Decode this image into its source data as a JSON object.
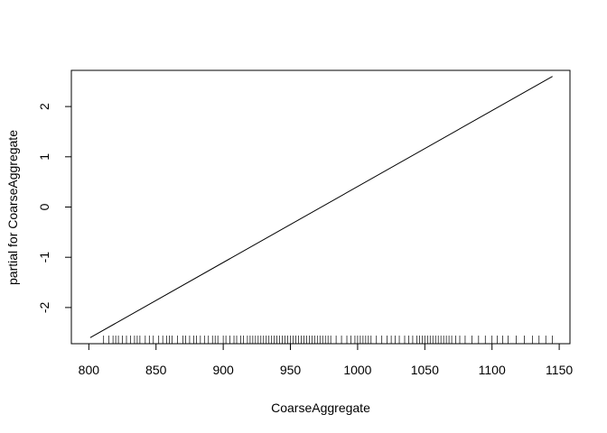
{
  "chart_data": {
    "type": "line",
    "title": "",
    "xlabel": "CoarseAggregate",
    "ylabel": "partial for CoarseAggregate",
    "xlim": [
      787,
      1158
    ],
    "ylim": [
      -2.72,
      2.72
    ],
    "xticks": [
      800,
      850,
      900,
      950,
      1000,
      1050,
      1100,
      1150
    ],
    "yticks": [
      -2,
      -1,
      0,
      1,
      2
    ],
    "grid": false,
    "legend": "none",
    "series": [
      {
        "type": "line",
        "x": [
          801,
          1145
        ],
        "y": [
          -2.6,
          2.6
        ]
      }
    ],
    "rug": [
      811,
      815,
      818,
      820,
      822,
      825,
      828,
      831,
      834,
      836,
      838,
      842,
      845,
      848,
      852,
      855,
      858,
      860,
      862,
      866,
      870,
      872,
      875,
      878,
      880,
      883,
      886,
      889,
      892,
      894,
      896,
      900,
      902,
      905,
      908,
      910,
      913,
      915,
      918,
      920,
      922,
      924,
      926,
      928,
      930,
      932,
      934,
      936,
      938,
      940,
      942,
      944,
      946,
      948,
      950,
      952,
      954,
      956,
      958,
      960,
      962,
      964,
      966,
      968,
      970,
      972,
      974,
      976,
      978,
      980,
      984,
      988,
      992,
      995,
      998,
      1000,
      1002,
      1004,
      1006,
      1008,
      1010,
      1014,
      1018,
      1022,
      1025,
      1028,
      1031,
      1035,
      1038,
      1041,
      1044,
      1046,
      1048,
      1050,
      1052,
      1054,
      1056,
      1058,
      1060,
      1062,
      1064,
      1066,
      1068,
      1070,
      1073,
      1076,
      1080,
      1085,
      1090,
      1095,
      1100,
      1104,
      1108,
      1112,
      1118,
      1124,
      1130,
      1135,
      1140,
      1145
    ],
    "colors": {
      "line": "#000000",
      "axis": "#000000",
      "background": "#ffffff"
    }
  }
}
